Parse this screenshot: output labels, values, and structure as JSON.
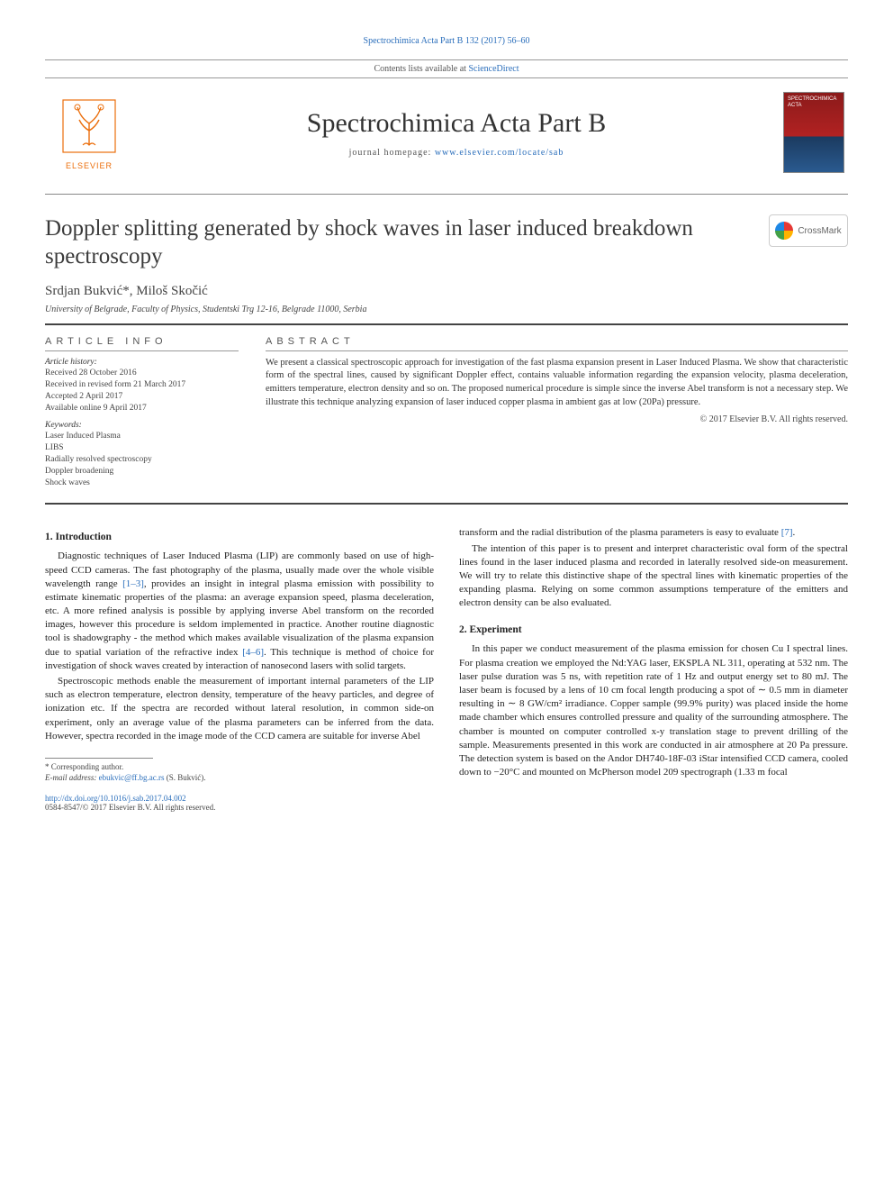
{
  "header": {
    "citation": "Spectrochimica Acta Part B 132 (2017) 56–60",
    "contents_prefix": "Contents lists available at ",
    "contents_link": "ScienceDirect",
    "journal_title": "Spectrochimica Acta Part B",
    "homepage_prefix": "journal homepage: ",
    "homepage_url": "www.elsevier.com/locate/sab",
    "publisher_logo_text": "ELSEVIER",
    "cover_label": "SPECTROCHIMICA ACTA"
  },
  "crossmark": {
    "label": "CrossMark"
  },
  "article": {
    "title": "Doppler splitting generated by shock waves in laser induced breakdown spectroscopy",
    "authors": "Srdjan Bukvić*, Miloš Skočić",
    "affiliation": "University of Belgrade, Faculty of Physics, Studentski Trg 12-16, Belgrade 11000, Serbia"
  },
  "info": {
    "section_label": "ARTICLE INFO",
    "history_label": "Article history:",
    "received": "Received 28 October 2016",
    "revised": "Received in revised form 21 March 2017",
    "accepted": "Accepted 2 April 2017",
    "online": "Available online 9 April 2017",
    "keywords_label": "Keywords:",
    "keywords": [
      "Laser Induced Plasma",
      "LIBS",
      "Radially resolved spectroscopy",
      "Doppler broadening",
      "Shock waves"
    ]
  },
  "abstract": {
    "section_label": "ABSTRACT",
    "text": "We present a classical spectroscopic approach for investigation of the fast plasma expansion present in Laser Induced Plasma. We show that characteristic form of the spectral lines, caused by significant Doppler effect, contains valuable information regarding the expansion velocity, plasma deceleration, emitters temperature, electron density and so on. The proposed numerical procedure is simple since the inverse Abel transform is not a necessary step. We illustrate this technique analyzing expansion of laser induced copper plasma in ambient gas at low (20Pa) pressure.",
    "copyright": "© 2017 Elsevier B.V. All rights reserved."
  },
  "body": {
    "intro_heading": "1. Introduction",
    "intro_p1": "Diagnostic techniques of Laser Induced Plasma (LIP) are commonly based on use of high-speed CCD cameras. The fast photography of the plasma, usually made over the whole visible wavelength range [1–3], provides an insight in integral plasma emission with possibility to estimate kinematic properties of the plasma: an average expansion speed, plasma deceleration, etc. A more refined analysis is possible by applying inverse Abel transform on the recorded images, however this procedure is seldom implemented in practice. Another routine diagnostic tool is shadowgraphy - the method which makes available visualization of the plasma expansion due to spatial variation of the refractive index [4–6]. This technique is method of choice for investigation of shock waves created by interaction of nanosecond lasers with solid targets.",
    "intro_p2": "Spectroscopic methods enable the measurement of important internal parameters of the LIP such as electron temperature, electron density, temperature of the heavy particles, and degree of ionization etc. If the spectra are recorded without lateral resolution, in common side-on experiment, only an average value of the plasma parameters can be inferred from the data. However, spectra recorded in the image mode of the CCD camera are suitable for inverse Abel",
    "right_p1": "transform and the radial distribution of the plasma parameters is easy to evaluate [7].",
    "right_p2": "The intention of this paper is to present and interpret characteristic oval form of the spectral lines found in the laser induced plasma and recorded in laterally resolved side-on measurement. We will try to relate this distinctive shape of the spectral lines with kinematic properties of the expanding plasma. Relying on some common assumptions temperature of the emitters and electron density can be also evaluated.",
    "exp_heading": "2. Experiment",
    "exp_p1": "In this paper we conduct measurement of the plasma emission for chosen Cu I spectral lines. For plasma creation we employed the Nd:YAG laser, EKSPLA NL 311, operating at 532 nm. The laser pulse duration was 5 ns, with repetition rate of 1 Hz and output energy set to 80 mJ.  The laser beam is focused by a lens of 10 cm focal length producing a spot of ∼ 0.5  mm in diameter resulting in ∼  8 GW/cm² irradiance. Copper sample (99.9% purity) was placed inside the home made chamber which ensures controlled pressure and quality of the surrounding atmosphere. The chamber is mounted on computer controlled x-y translation stage to prevent drilling of the sample. Measurements presented in this work are conducted in air atmosphere at 20 Pa pressure. The detection system is based on the Andor DH740-18F-03 iStar intensified CCD camera, cooled down to −20°C and mounted on McPherson model 209 spectrograph (1.33 m focal"
  },
  "footnote": {
    "corr": "* Corresponding author.",
    "email_label": "E-mail address: ",
    "email": "ebukvic@ff.bg.ac.rs",
    "email_suffix": " (S. Bukvić)."
  },
  "doi": {
    "url": "http://dx.doi.org/10.1016/j.sab.2017.04.002",
    "issn_line": "0584-8547/© 2017 Elsevier B.V. All rights reserved."
  },
  "colors": {
    "link": "#2a6ebb",
    "elsevier_orange": "#eb6d0a",
    "text": "#222222",
    "rule": "#888888"
  }
}
